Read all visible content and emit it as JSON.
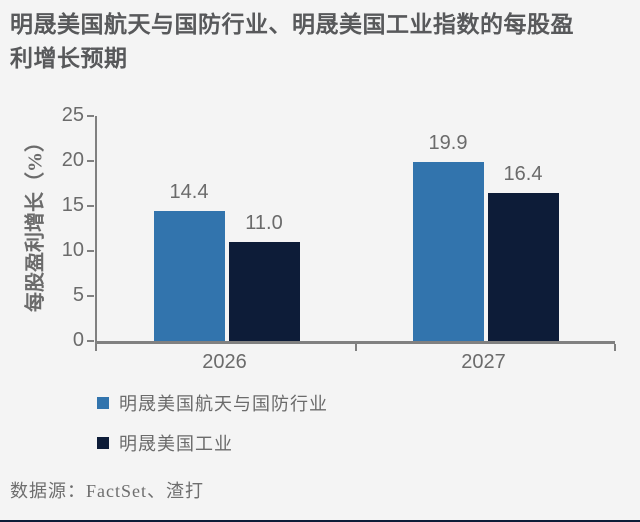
{
  "page": {
    "source": "数据源：FactSet、渣打"
  },
  "colors": {
    "background": "#f4f4f4",
    "axis": "#808080",
    "label_text": "#6b6b6b",
    "title_text": "#58595b",
    "series_blue": "#3274ad",
    "series_navy": "#0d1c38",
    "bottom_rule": "#0d1c38"
  },
  "chart_data": {
    "type": "bar",
    "title": "明晟美国航天与国防行业、明晟美国工业指数的每股盈利增长预期",
    "categories": [
      "2026",
      "2027"
    ],
    "series": [
      {
        "name": "明晟美国航天与国防行业",
        "color": "#3274ad",
        "values": [
          14.4,
          19.9
        ],
        "labels": [
          "14.4",
          "19.9"
        ]
      },
      {
        "name": "明晟美国工业",
        "color": "#0d1c38",
        "values": [
          11.0,
          16.4
        ],
        "labels": [
          "11.0",
          "16.4"
        ]
      }
    ],
    "xlabel": "",
    "ylabel": "每股盈利增长（%）",
    "ylim": [
      0,
      25
    ],
    "yticks": [
      0,
      5,
      10,
      15,
      20,
      25
    ],
    "grid": false,
    "legend_position": "bottom-left"
  }
}
